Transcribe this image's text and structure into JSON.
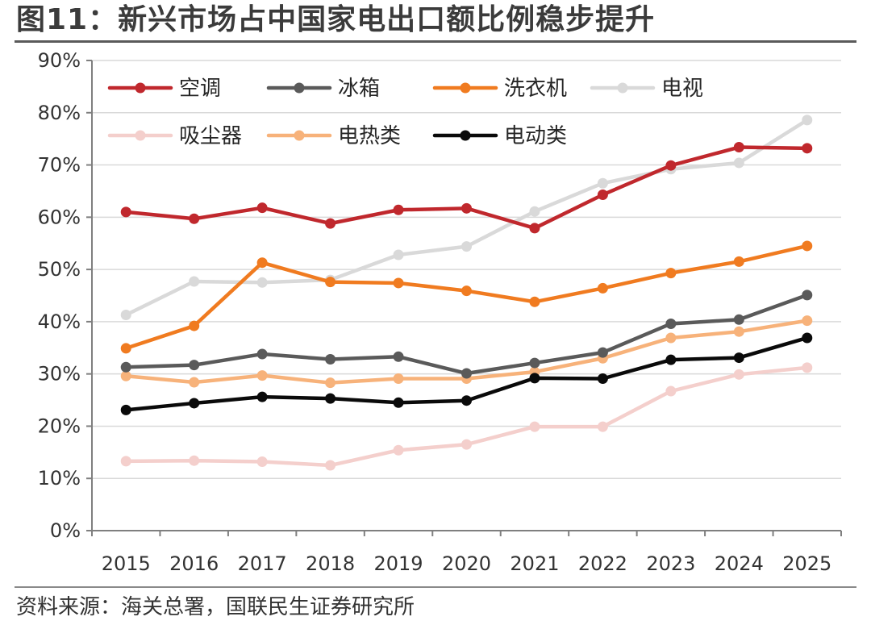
{
  "header": {
    "title": "图11：新兴市场占中国家电出口额比例稳步提升"
  },
  "footer": {
    "source": "资料来源：海关总署，国联民生证券研究所"
  },
  "chart_data": {
    "type": "line",
    "title": "图11：新兴市场占中国家电出口额比例稳步提升",
    "xlabel": "",
    "ylabel": "",
    "categories": [
      "2015",
      "2016",
      "2017",
      "2018",
      "2019",
      "2020",
      "2021",
      "2022",
      "2023",
      "2024",
      "2025"
    ],
    "ylim": [
      0,
      90
    ],
    "yticks": [
      0,
      10,
      20,
      30,
      40,
      50,
      60,
      70,
      80,
      90
    ],
    "ytick_labels": [
      "0%",
      "10%",
      "20%",
      "30%",
      "40%",
      "50%",
      "60%",
      "70%",
      "80%",
      "90%"
    ],
    "grid": true,
    "legend_position": "top-left",
    "series": [
      {
        "name": "空调",
        "color": "#c0282d",
        "values": [
          61.0,
          59.7,
          61.8,
          58.8,
          61.4,
          61.7,
          57.9,
          64.3,
          69.9,
          73.4,
          73.2
        ]
      },
      {
        "name": "冰箱",
        "color": "#5a5a5a",
        "values": [
          31.3,
          31.7,
          33.8,
          32.8,
          33.3,
          30.1,
          32.1,
          34.1,
          39.6,
          40.4,
          45.1
        ]
      },
      {
        "name": "洗衣机",
        "color": "#f07b20",
        "values": [
          34.9,
          39.2,
          51.3,
          47.6,
          47.4,
          45.9,
          43.8,
          46.4,
          49.3,
          51.5,
          54.5
        ]
      },
      {
        "name": "电视",
        "color": "#d9d9d9",
        "values": [
          41.3,
          47.7,
          47.5,
          48.0,
          52.8,
          54.4,
          61.1,
          66.5,
          69.2,
          70.4,
          78.6
        ]
      },
      {
        "name": "吸尘器",
        "color": "#f4cfcc",
        "values": [
          13.3,
          13.4,
          13.2,
          12.5,
          15.4,
          16.5,
          19.9,
          19.9,
          26.7,
          29.9,
          31.2
        ]
      },
      {
        "name": "电热类",
        "color": "#f7b27a",
        "values": [
          29.6,
          28.4,
          29.7,
          28.3,
          29.1,
          29.1,
          30.4,
          33.0,
          36.9,
          38.1,
          40.2
        ]
      },
      {
        "name": "电动类",
        "color": "#0a0a0a",
        "values": [
          23.1,
          24.4,
          25.6,
          25.3,
          24.5,
          24.9,
          29.2,
          29.1,
          32.7,
          33.1,
          36.9
        ]
      }
    ]
  }
}
